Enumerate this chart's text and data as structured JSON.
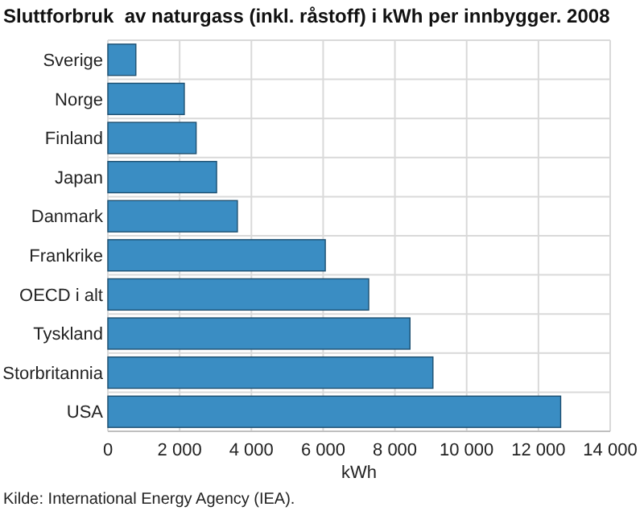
{
  "chart_data": {
    "type": "bar",
    "orientation": "horizontal",
    "title": "Sluttforbruk  av naturgass (inkl. råstoff) i kWh per innbygger. 2008",
    "categories": [
      "Sverige",
      "Norge",
      "Finland",
      "Japan",
      "Danmark",
      "Frankrike",
      "OECD i alt",
      "Tyskland",
      "Storbritannia",
      "USA"
    ],
    "values": [
      780,
      2130,
      2460,
      3030,
      3610,
      6060,
      7270,
      8420,
      9060,
      12620
    ],
    "color": "#3a8dc3",
    "xlim": [
      0,
      14000
    ],
    "xticks": [
      {
        "value": 0,
        "label": "0"
      },
      {
        "value": 2000,
        "label": "2 000"
      },
      {
        "value": 4000,
        "label": "4 000"
      },
      {
        "value": 6000,
        "label": "6 000"
      },
      {
        "value": 8000,
        "label": "8 000"
      },
      {
        "value": 10000,
        "label": "10 000"
      },
      {
        "value": 12000,
        "label": "12 000"
      },
      {
        "value": 14000,
        "label": "14 000"
      }
    ],
    "xlabel": "kWh",
    "grid": true,
    "annotations": [
      "Kilde: International Energy Agency (IEA)."
    ]
  }
}
